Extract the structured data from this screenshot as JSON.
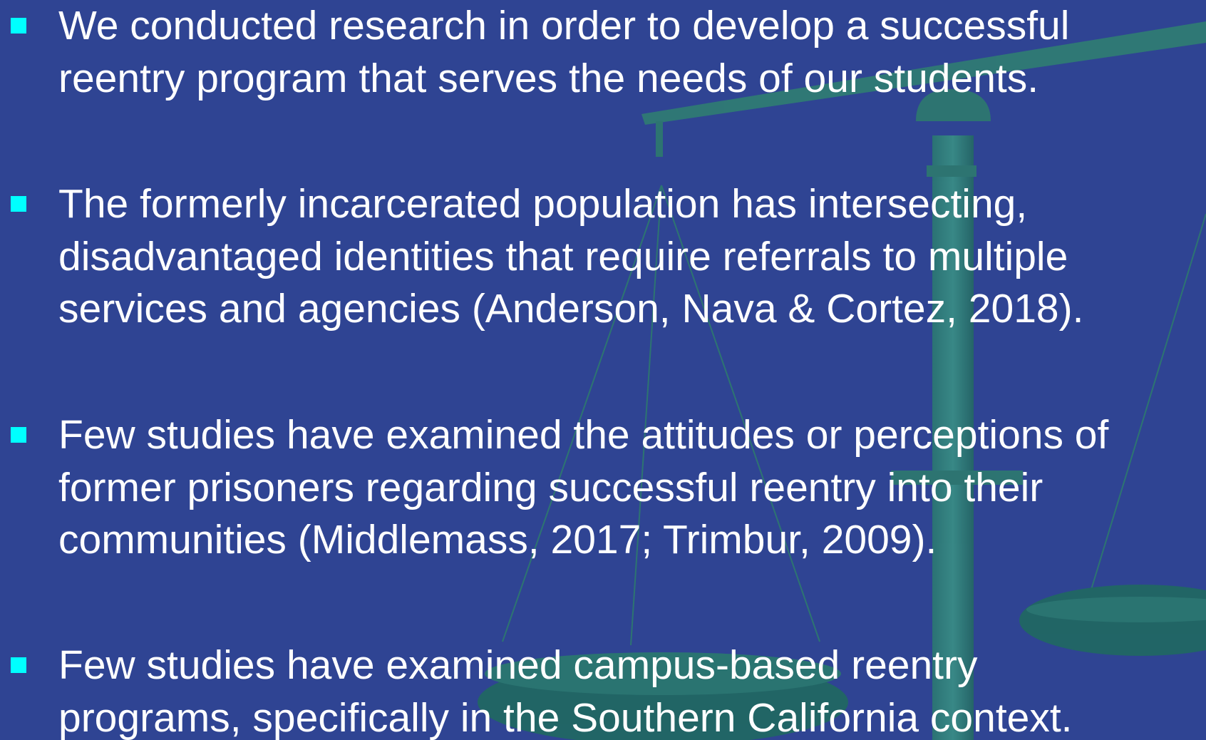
{
  "bullets": [
    {
      "lines": [
        "We conducted research in order to develop a successful",
        "reentry program that serves the needs of our students."
      ]
    },
    {
      "lines": [
        "The formerly incarcerated population has intersecting,",
        "disadvantaged identities that require referrals to multiple",
        "services and agencies (Anderson, Nava & Cortez, 2018)."
      ]
    },
    {
      "lines": [
        "Few studies have examined the attitudes or perceptions of",
        "former prisoners regarding successful reentry into their",
        "communities (Middlemass, 2017; Trimbur, 2009)."
      ]
    },
    {
      "lines": [
        "Few studies have examined campus-based reentry",
        "programs, specifically in the Southern California context."
      ]
    }
  ]
}
